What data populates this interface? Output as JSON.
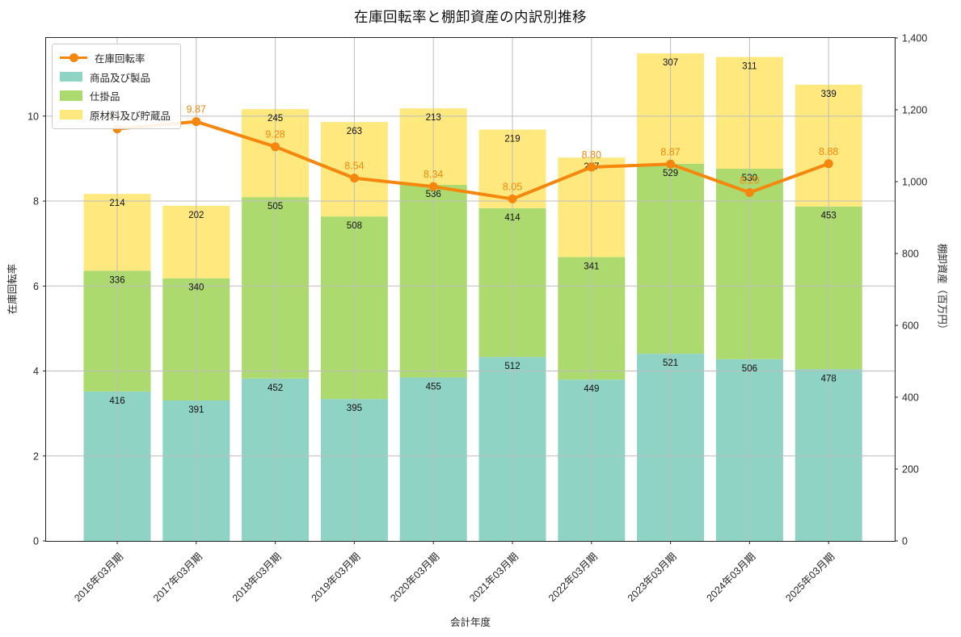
{
  "title": "在庫回転率と棚卸資産の内訳別推移",
  "chart_data": {
    "type": "bar",
    "subtype": "stacked-bars-with-line-overlay",
    "categories": [
      "2016年03月期",
      "2017年03月期",
      "2018年03月期",
      "2019年03月期",
      "2020年03月期",
      "2021年03月期",
      "2022年03月期",
      "2023年03月期",
      "2024年03月期",
      "2025年03月期"
    ],
    "series": [
      {
        "name": "商品及び製品",
        "color": "#8ED3C4",
        "values": [
          416,
          391,
          452,
          395,
          455,
          512,
          449,
          521,
          506,
          478
        ]
      },
      {
        "name": "仕掛品",
        "color": "#ADDA6F",
        "values": [
          336,
          340,
          505,
          508,
          536,
          414,
          341,
          529,
          530,
          453
        ]
      },
      {
        "name": "原材料及び貯蔵品",
        "color": "#FFE97E",
        "values": [
          214,
          202,
          245,
          263,
          213,
          219,
          277,
          307,
          311,
          339
        ]
      }
    ],
    "line_series": {
      "name": "在庫回転率",
      "color": "#F5870F",
      "values": [
        9.7,
        9.87,
        9.28,
        8.54,
        8.34,
        8.05,
        8.8,
        8.87,
        8.2,
        8.88
      ]
    },
    "title": "在庫回転率と棚卸資産の内訳別推移",
    "xlabel": "会計年度",
    "ylabel_left": "在庫回転率",
    "ylabel_right": "棚卸資産（百万円）",
    "ylim_left": [
      0,
      11.84
    ],
    "yticks_left": [
      0,
      2,
      4,
      6,
      8,
      10
    ],
    "ylim_right": [
      0,
      1400
    ],
    "yticks_right_values": [
      0,
      200,
      400,
      600,
      800,
      1000,
      1200,
      1400
    ],
    "yticks_right_labels": [
      "0",
      "200",
      "400",
      "600",
      "800",
      "1,000",
      "1,200",
      "1,400"
    ],
    "grid": true,
    "grid_color": "#BDBDBD",
    "legend_position": "upper left",
    "bar_label_color": "#111111",
    "axis_color": "#262626",
    "x_tick_rotation_deg": 45
  }
}
